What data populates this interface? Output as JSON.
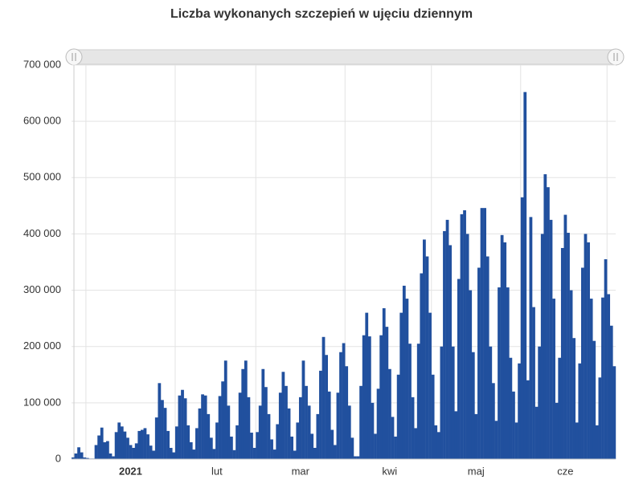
{
  "chart_data": {
    "type": "bar",
    "title": "Liczba wykonanych szczepień w ujęciu dziennym",
    "color": "#21509e",
    "grid": true,
    "ylim": [
      0,
      700000
    ],
    "yticks": [
      0,
      {
        "value": 100000,
        "label": "100 000"
      },
      {
        "value": 200000,
        "label": "200 000"
      },
      {
        "value": 300000,
        "label": "300 000"
      },
      {
        "value": 400000,
        "label": "400 000"
      },
      {
        "value": 500000,
        "label": "500 000"
      },
      {
        "value": 600000,
        "label": "600 000"
      },
      {
        "value": 700000,
        "label": "700 000"
      }
    ],
    "categories": [
      null,
      null,
      null,
      null,
      null,
      null,
      null,
      null,
      null,
      null,
      null,
      null,
      null,
      null,
      null,
      null,
      null,
      null,
      null,
      null,
      "2021",
      null,
      null,
      null,
      null,
      null,
      null,
      null,
      null,
      null,
      null,
      null,
      null,
      null,
      null,
      null,
      null,
      null,
      null,
      null,
      null,
      null,
      null,
      null,
      null,
      null,
      null,
      null,
      null,
      null,
      "lut",
      null,
      null,
      null,
      null,
      null,
      null,
      null,
      null,
      null,
      null,
      null,
      null,
      null,
      null,
      null,
      null,
      null,
      null,
      null,
      null,
      null,
      null,
      null,
      null,
      null,
      null,
      null,
      null,
      "mar",
      null,
      null,
      null,
      null,
      null,
      null,
      null,
      null,
      null,
      null,
      null,
      null,
      null,
      null,
      null,
      null,
      null,
      null,
      null,
      null,
      null,
      null,
      null,
      null,
      null,
      null,
      null,
      null,
      null,
      null,
      "kwi",
      null,
      null,
      null,
      null,
      null,
      null,
      null,
      null,
      null,
      null,
      null,
      null,
      null,
      null,
      null,
      null,
      null,
      null,
      null,
      null,
      null,
      null,
      null,
      null,
      null,
      null,
      null,
      null,
      null,
      "maj",
      null,
      null,
      null,
      null,
      null,
      null,
      null,
      null,
      null,
      null,
      null,
      null,
      null,
      null,
      null,
      null,
      null,
      null,
      null,
      null,
      null,
      null,
      null,
      null,
      null,
      null,
      null,
      null,
      null,
      null,
      "cze",
      null,
      null,
      null,
      null,
      null,
      null,
      null,
      null,
      null,
      null,
      null,
      null,
      null,
      null,
      null,
      null,
      null
    ],
    "values": [
      3000,
      10000,
      21000,
      12000,
      3000,
      2000,
      1000,
      1000,
      25000,
      42000,
      56000,
      30000,
      32000,
      10000,
      5000,
      48000,
      65000,
      58000,
      49000,
      38000,
      25000,
      20000,
      28000,
      50000,
      52000,
      55000,
      44000,
      24000,
      15000,
      74000,
      135000,
      105000,
      91000,
      50000,
      20000,
      12000,
      58000,
      113000,
      123000,
      108000,
      60000,
      30000,
      17000,
      55000,
      90000,
      115000,
      113000,
      80000,
      38000,
      18000,
      65000,
      112000,
      138000,
      175000,
      95000,
      40000,
      16000,
      60000,
      118000,
      160000,
      175000,
      110000,
      47000,
      20000,
      48000,
      95000,
      160000,
      128000,
      80000,
      35000,
      17000,
      62000,
      118000,
      155000,
      130000,
      90000,
      40000,
      15000,
      65000,
      110000,
      175000,
      130000,
      95000,
      45000,
      20000,
      80000,
      157000,
      217000,
      185000,
      120000,
      52000,
      25000,
      118000,
      190000,
      206000,
      165000,
      95000,
      38000,
      5000,
      5000,
      130000,
      220000,
      260000,
      218000,
      100000,
      45000,
      125000,
      220000,
      268000,
      235000,
      160000,
      75000,
      40000,
      150000,
      260000,
      308000,
      285000,
      205000,
      110000,
      55000,
      205000,
      330000,
      390000,
      360000,
      260000,
      150000,
      60000,
      48000,
      200000,
      405000,
      425000,
      380000,
      200000,
      85000,
      320000,
      435000,
      442000,
      400000,
      300000,
      190000,
      80000,
      340000,
      446000,
      446000,
      360000,
      200000,
      135000,
      68000,
      305000,
      398000,
      385000,
      305000,
      180000,
      120000,
      65000,
      170000,
      465000,
      652000,
      140000,
      430000,
      270000,
      93000,
      200000,
      400000,
      506000,
      483000,
      425000,
      285000,
      100000,
      180000,
      375000,
      434000,
      402000,
      300000,
      215000,
      65000,
      170000,
      340000,
      400000,
      385000,
      285000,
      210000,
      60000,
      145000,
      287000,
      355000,
      293000,
      237000,
      165000
    ]
  }
}
